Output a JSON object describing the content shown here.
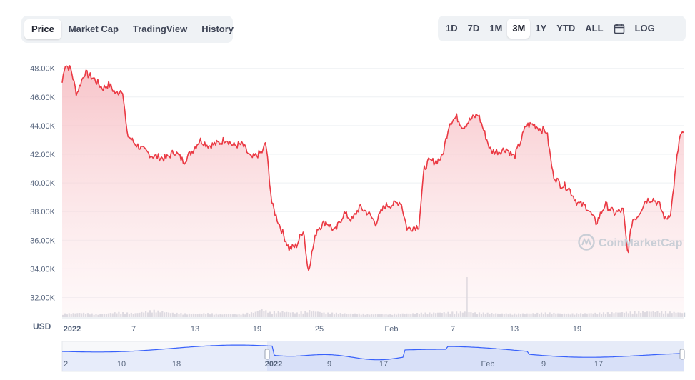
{
  "tabs": [
    {
      "label": "Price",
      "active": true
    },
    {
      "label": "Market Cap",
      "active": false
    },
    {
      "label": "TradingView",
      "active": false
    },
    {
      "label": "History",
      "active": false
    }
  ],
  "ranges": [
    {
      "label": "1D",
      "active": false
    },
    {
      "label": "7D",
      "active": false
    },
    {
      "label": "1M",
      "active": false
    },
    {
      "label": "3M",
      "active": true
    },
    {
      "label": "1Y",
      "active": false
    },
    {
      "label": "YTD",
      "active": false
    },
    {
      "label": "ALL",
      "active": false
    }
  ],
  "calendar_icon": "calendar-icon",
  "log_label": "LOG",
  "currency_label": "USD",
  "watermark": "CoinMarketCap",
  "colors": {
    "line": "#ea3943",
    "area_top": "#fbd7da",
    "volume": "#ccd1da",
    "nav_line": "#3861fb",
    "nav_fill": "#e6ebf8"
  },
  "chart_data": {
    "type": "area",
    "title": "",
    "xlabel": "",
    "ylabel": "USD",
    "ylim": [
      31000,
      49000
    ],
    "y_ticks": [
      "32.00K",
      "34.00K",
      "36.00K",
      "38.00K",
      "40.00K",
      "42.00K",
      "44.00K",
      "46.00K",
      "48.00K"
    ],
    "x_ticks": [
      "2022",
      "7",
      "13",
      "19",
      "25",
      "Feb",
      "7",
      "13",
      "19"
    ],
    "navigator_ticks": [
      "2",
      "10",
      "18",
      "2022",
      "9",
      "17",
      "Feb",
      "9",
      "17"
    ],
    "grid": true,
    "legend": "none",
    "series": [
      {
        "values": [
          [
            0,
            47000
          ],
          [
            0.3,
            48300
          ],
          [
            1,
            47900
          ],
          [
            1.6,
            46200
          ],
          [
            2.5,
            47700
          ],
          [
            3.5,
            47300
          ],
          [
            4.5,
            46600
          ],
          [
            5.2,
            46900
          ],
          [
            6,
            46200
          ],
          [
            6.7,
            46600
          ],
          [
            7.2,
            43400
          ],
          [
            8,
            42800
          ],
          [
            9,
            42300
          ],
          [
            10,
            41900
          ],
          [
            11.5,
            41700
          ],
          [
            12.5,
            42200
          ],
          [
            13.5,
            41500
          ],
          [
            14.5,
            42300
          ],
          [
            15.3,
            43000
          ],
          [
            16.3,
            42600
          ],
          [
            17.5,
            42800
          ],
          [
            18.2,
            43100
          ],
          [
            19,
            42600
          ],
          [
            20,
            42700
          ],
          [
            21,
            41700
          ],
          [
            22.3,
            42200
          ],
          [
            22.6,
            42900
          ],
          [
            23.3,
            38500
          ],
          [
            23.8,
            37600
          ],
          [
            24.5,
            36500
          ],
          [
            25.2,
            35400
          ],
          [
            26,
            35600
          ],
          [
            26.8,
            36800
          ],
          [
            27.3,
            33800
          ],
          [
            27.6,
            34700
          ],
          [
            28.3,
            36800
          ],
          [
            29.3,
            37300
          ],
          [
            30.3,
            36600
          ],
          [
            31.3,
            37900
          ],
          [
            32.2,
            37400
          ],
          [
            33,
            38300
          ],
          [
            34,
            37900
          ],
          [
            34.8,
            37200
          ],
          [
            35.8,
            38400
          ],
          [
            36.8,
            38500
          ],
          [
            37.6,
            38700
          ],
          [
            38.3,
            36800
          ],
          [
            39.6,
            37000
          ],
          [
            40.2,
            41000
          ],
          [
            40.7,
            41500
          ],
          [
            41.5,
            41500
          ],
          [
            42.2,
            41800
          ],
          [
            43,
            44200
          ],
          [
            43.8,
            44600
          ],
          [
            44.5,
            43900
          ],
          [
            45.3,
            44400
          ],
          [
            46.2,
            44800
          ],
          [
            46.9,
            43500
          ],
          [
            47.6,
            42200
          ],
          [
            48.5,
            42200
          ],
          [
            49.3,
            42400
          ],
          [
            50.2,
            41800
          ],
          [
            50.9,
            42900
          ],
          [
            51.5,
            44000
          ],
          [
            52.3,
            44100
          ],
          [
            53,
            43800
          ],
          [
            53.8,
            43600
          ],
          [
            54.5,
            40600
          ],
          [
            55.3,
            39900
          ],
          [
            56.2,
            39700
          ],
          [
            57.2,
            38600
          ],
          [
            58.3,
            38300
          ],
          [
            59.3,
            37200
          ],
          [
            60.3,
            38500
          ],
          [
            61.3,
            37900
          ],
          [
            62.3,
            38100
          ],
          [
            62.8,
            35000
          ],
          [
            63.3,
            37400
          ],
          [
            63.9,
            37700
          ],
          [
            64.8,
            38800
          ],
          [
            65.6,
            38900
          ],
          [
            66.3,
            38500
          ],
          [
            67,
            37400
          ],
          [
            67.6,
            38000
          ],
          [
            68.2,
            41400
          ],
          [
            68.6,
            43300
          ],
          [
            69,
            43400
          ]
        ]
      }
    ],
    "volume": [
      [
        0,
        0.35
      ],
      [
        2,
        0.45
      ],
      [
        4,
        0.3
      ],
      [
        6,
        0.5
      ],
      [
        8,
        0.4
      ],
      [
        9,
        0.55
      ],
      [
        10,
        0.7
      ],
      [
        12,
        0.45
      ],
      [
        14,
        0.35
      ],
      [
        16,
        0.4
      ],
      [
        18,
        0.3
      ],
      [
        20,
        0.35
      ],
      [
        21.5,
        0.55
      ],
      [
        22,
        0.85
      ],
      [
        23,
        0.5
      ],
      [
        24,
        0.6
      ],
      [
        26,
        0.45
      ],
      [
        27.5,
        0.7
      ],
      [
        29,
        0.45
      ],
      [
        31,
        0.4
      ],
      [
        33,
        0.35
      ],
      [
        35,
        0.3
      ],
      [
        37,
        0.35
      ],
      [
        39,
        0.4
      ],
      [
        41,
        0.45
      ],
      [
        43,
        0.5
      ],
      [
        44.7,
        0.55
      ],
      [
        46,
        0.45
      ],
      [
        48,
        0.4
      ],
      [
        50,
        0.35
      ],
      [
        52,
        0.4
      ],
      [
        54,
        0.45
      ],
      [
        56,
        0.35
      ],
      [
        58,
        0.4
      ],
      [
        60,
        0.45
      ],
      [
        62,
        0.5
      ],
      [
        64,
        0.55
      ],
      [
        66,
        0.6
      ],
      [
        68,
        0.5
      ],
      [
        69,
        0.45
      ]
    ],
    "volume_spike": {
      "x": 44.9,
      "value": 1
    }
  }
}
